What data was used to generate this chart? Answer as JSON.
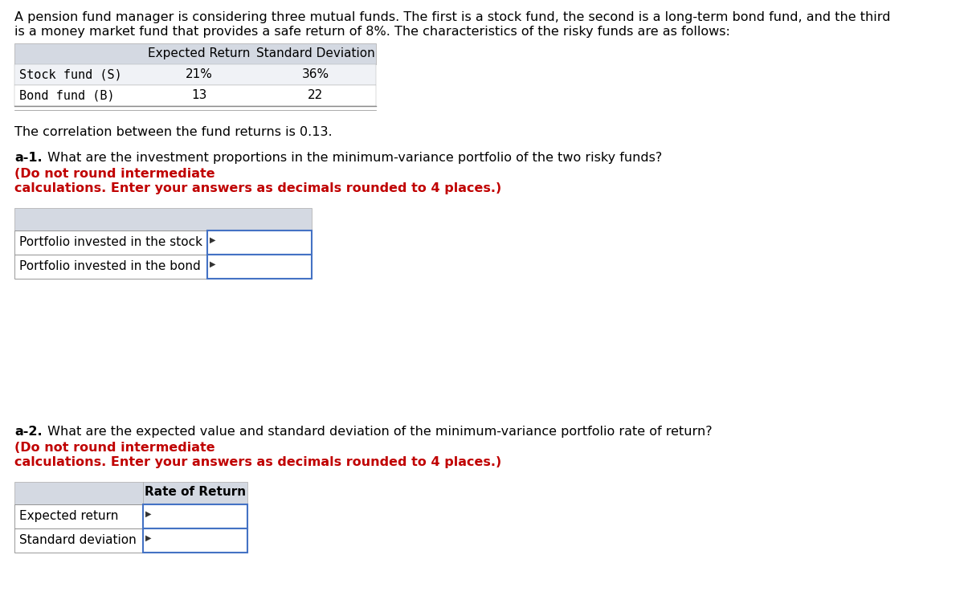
{
  "intro_line1": "A pension fund manager is considering three mutual funds. The first is a stock fund, the second is a long-term bond fund, and the third",
  "intro_line2": "is a money market fund that provides a safe return of 8%. The characteristics of the risky funds are as follows:",
  "table1_col_headers": [
    "Expected Return",
    "Standard Deviation"
  ],
  "table1_rows": [
    [
      "Stock fund (S)",
      "21%",
      "36%"
    ],
    [
      "Bond fund (B)",
      "13",
      "22"
    ]
  ],
  "correlation_text": "The correlation between the fund returns is 0.13.",
  "a1_label": "a-1.",
  "a1_normal": " What are the investment proportions in the minimum-variance portfolio of the two risky funds? ",
  "a1_bold_red": "(Do not round intermediate",
  "a1_bold_red2": "calculations. Enter your answers as decimals rounded to 4 places.)",
  "a1_rows": [
    "Portfolio invested in the stock",
    "Portfolio invested in the bond"
  ],
  "a2_label": "a-2.",
  "a2_normal": " What are the expected value and standard deviation of the minimum-variance portfolio rate of return? ",
  "a2_bold_red": "(Do not round intermediate",
  "a2_bold_red2": "calculations. Enter your answers as decimals rounded to 4 places.)",
  "a2_col_header": "Rate of Return",
  "a2_rows": [
    "Expected return",
    "Standard deviation"
  ],
  "bg_color": "#ffffff",
  "table_header_bg": "#d4d9e2",
  "table_row1_bg": "#f0f2f6",
  "table_row2_bg": "#ffffff",
  "border_color": "#4472c4",
  "text_color": "#000000",
  "red_color": "#c00000",
  "font_size_body": 11.5,
  "font_size_table": 11.0
}
